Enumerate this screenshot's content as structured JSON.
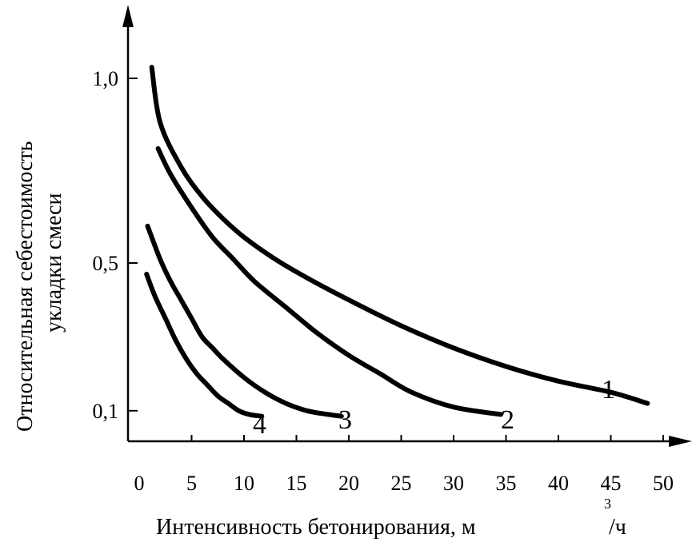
{
  "chart_data": {
    "type": "line",
    "ylabel_line1": "Относительная себестоимость",
    "ylabel_line2": "укладки смеси",
    "xlabel_main": "Интенсивность бетонирования,  м",
    "xlabel_exp": "3",
    "xlabel_tail": "/ч",
    "x_ticks": [
      "0",
      "5",
      "10",
      "15",
      "20",
      "25",
      "30",
      "35",
      "40",
      "45",
      "50"
    ],
    "y_ticks": [
      "0,1",
      "0,5",
      "1,0"
    ],
    "xlim": [
      0,
      52
    ],
    "ylim": [
      0,
      1.2
    ],
    "grid": false,
    "series": [
      {
        "name": "1",
        "x": [
          1.2,
          2,
          4,
          6,
          8,
          10,
          13,
          16,
          20,
          25,
          30,
          35,
          40,
          45,
          48.5
        ],
        "y": [
          1.03,
          0.88,
          0.76,
          0.68,
          0.62,
          0.57,
          0.51,
          0.46,
          0.4,
          0.33,
          0.27,
          0.22,
          0.18,
          0.15,
          0.12
        ]
      },
      {
        "name": "2",
        "x": [
          1.8,
          3,
          5,
          7,
          9,
          11,
          14,
          17,
          20,
          23,
          26,
          30,
          34.5
        ],
        "y": [
          0.81,
          0.74,
          0.65,
          0.57,
          0.51,
          0.45,
          0.38,
          0.31,
          0.25,
          0.2,
          0.15,
          0.11,
          0.09
        ]
      },
      {
        "name": "3",
        "x": [
          0.8,
          2,
          3,
          4,
          5,
          6,
          7,
          8,
          10,
          12,
          14,
          16,
          18,
          19.3
        ],
        "y": [
          0.6,
          0.51,
          0.45,
          0.4,
          0.35,
          0.3,
          0.27,
          0.24,
          0.19,
          0.15,
          0.12,
          0.1,
          0.09,
          0.085
        ]
      },
      {
        "name": "4",
        "x": [
          0.7,
          1.5,
          2.5,
          3.5,
          4.5,
          5.5,
          6.5,
          7.5,
          8.5,
          9.5,
          10.5,
          11.7
        ],
        "y": [
          0.47,
          0.41,
          0.35,
          0.29,
          0.24,
          0.2,
          0.17,
          0.14,
          0.12,
          0.1,
          0.09,
          0.085
        ]
      }
    ],
    "series_labels": [
      "1",
      "2",
      "3",
      "4"
    ],
    "line_color": "#000000"
  }
}
